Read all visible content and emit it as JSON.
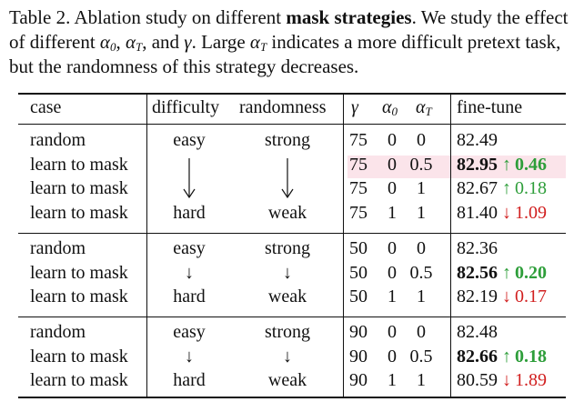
{
  "caption": {
    "prefix": "Table 2.",
    "part1": "Ablation study on different",
    "bold_part": "mask strategies",
    "part2": ". We study the effect of different",
    "alpha": "α",
    "sub0": "0",
    "subT": "T",
    "gamma": "γ",
    "and_text": ", and",
    "comma": ",",
    "dot": ".",
    "part3": "Large",
    "part4": "indicates a more difficult pretext task, but the randomness of this strategy decreases."
  },
  "headers": {
    "case": "case",
    "difficulty": "difficulty",
    "randomness": "randomness",
    "gamma": "γ",
    "alpha": "α",
    "sub0": "0",
    "subT": "T",
    "finetune": "fine-tune"
  },
  "arrow_down": "↓",
  "arrow_up": "↑",
  "groups": [
    {
      "rows": [
        {
          "case": "random",
          "difficulty": "easy",
          "randomness": "strong",
          "gamma": "75",
          "a0": "0",
          "aT": "0",
          "ft": "82.49",
          "ft_bold": false,
          "delta": "",
          "delta_dir": ""
        },
        {
          "case": "learn to mask",
          "difficulty": "",
          "randomness": "",
          "gamma": "75",
          "a0": "0",
          "aT": "0.5",
          "ft": "82.95",
          "ft_bold": true,
          "delta": "0.46",
          "delta_dir": "up"
        },
        {
          "case": "learn to mask",
          "difficulty": "",
          "randomness": "",
          "gamma": "75",
          "a0": "0",
          "aT": "1",
          "ft": "82.67",
          "ft_bold": false,
          "delta": "0.18",
          "delta_dir": "up"
        },
        {
          "case": "learn to mask",
          "difficulty": "hard",
          "randomness": "weak",
          "gamma": "75",
          "a0": "1",
          "aT": "1",
          "ft": "81.40",
          "ft_bold": false,
          "delta": "1.09",
          "delta_dir": "down"
        }
      ]
    },
    {
      "rows": [
        {
          "case": "random",
          "difficulty": "easy",
          "randomness": "strong",
          "gamma": "50",
          "a0": "0",
          "aT": "0",
          "ft": "82.36",
          "ft_bold": false,
          "delta": "",
          "delta_dir": ""
        },
        {
          "case": "learn to mask",
          "difficulty": "↓",
          "randomness": "↓",
          "gamma": "50",
          "a0": "0",
          "aT": "0.5",
          "ft": "82.56",
          "ft_bold": true,
          "delta": "0.20",
          "delta_dir": "up"
        },
        {
          "case": "learn to mask",
          "difficulty": "hard",
          "randomness": "weak",
          "gamma": "50",
          "a0": "1",
          "aT": "1",
          "ft": "82.19",
          "ft_bold": false,
          "delta": "0.17",
          "delta_dir": "down"
        }
      ]
    },
    {
      "rows": [
        {
          "case": "random",
          "difficulty": "easy",
          "randomness": "strong",
          "gamma": "90",
          "a0": "0",
          "aT": "0",
          "ft": "82.48",
          "ft_bold": false,
          "delta": "",
          "delta_dir": ""
        },
        {
          "case": "learn to mask",
          "difficulty": "↓",
          "randomness": "↓",
          "gamma": "90",
          "a0": "0",
          "aT": "0.5",
          "ft": "82.66",
          "ft_bold": true,
          "delta": "0.18",
          "delta_dir": "up"
        },
        {
          "case": "learn to mask",
          "difficulty": "hard",
          "randomness": "weak",
          "gamma": "90",
          "a0": "1",
          "aT": "1",
          "ft": "80.59",
          "ft_bold": false,
          "delta": "1.89",
          "delta_dir": "down"
        }
      ]
    }
  ],
  "colors": {
    "up": "#2e9e3a",
    "down": "#d11f1f",
    "highlight": "#fbe4ea"
  }
}
